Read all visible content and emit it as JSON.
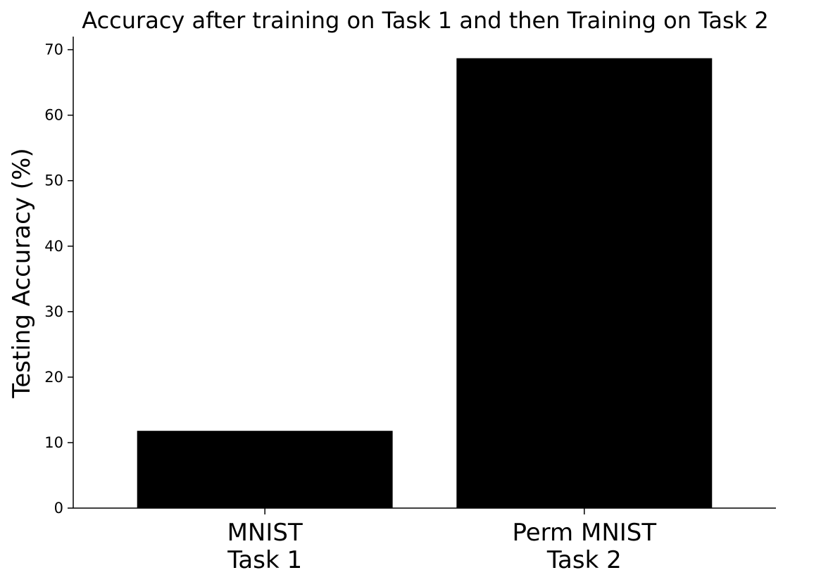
{
  "chart_data": {
    "type": "bar",
    "title": "Accuracy after training on Task 1 and then Training on Task 2",
    "xlabel": "",
    "ylabel": "Testing Accuracy (%)",
    "categories": [
      [
        "MNIST",
        "Task 1"
      ],
      [
        "Perm MNIST",
        "Task 2"
      ]
    ],
    "values": [
      11.8,
      68.7
    ],
    "ylim": [
      0,
      72
    ],
    "yticks": [
      0,
      10,
      20,
      30,
      40,
      50,
      60,
      70
    ],
    "bar_color": "#000000",
    "grid": false,
    "legend": "none"
  }
}
